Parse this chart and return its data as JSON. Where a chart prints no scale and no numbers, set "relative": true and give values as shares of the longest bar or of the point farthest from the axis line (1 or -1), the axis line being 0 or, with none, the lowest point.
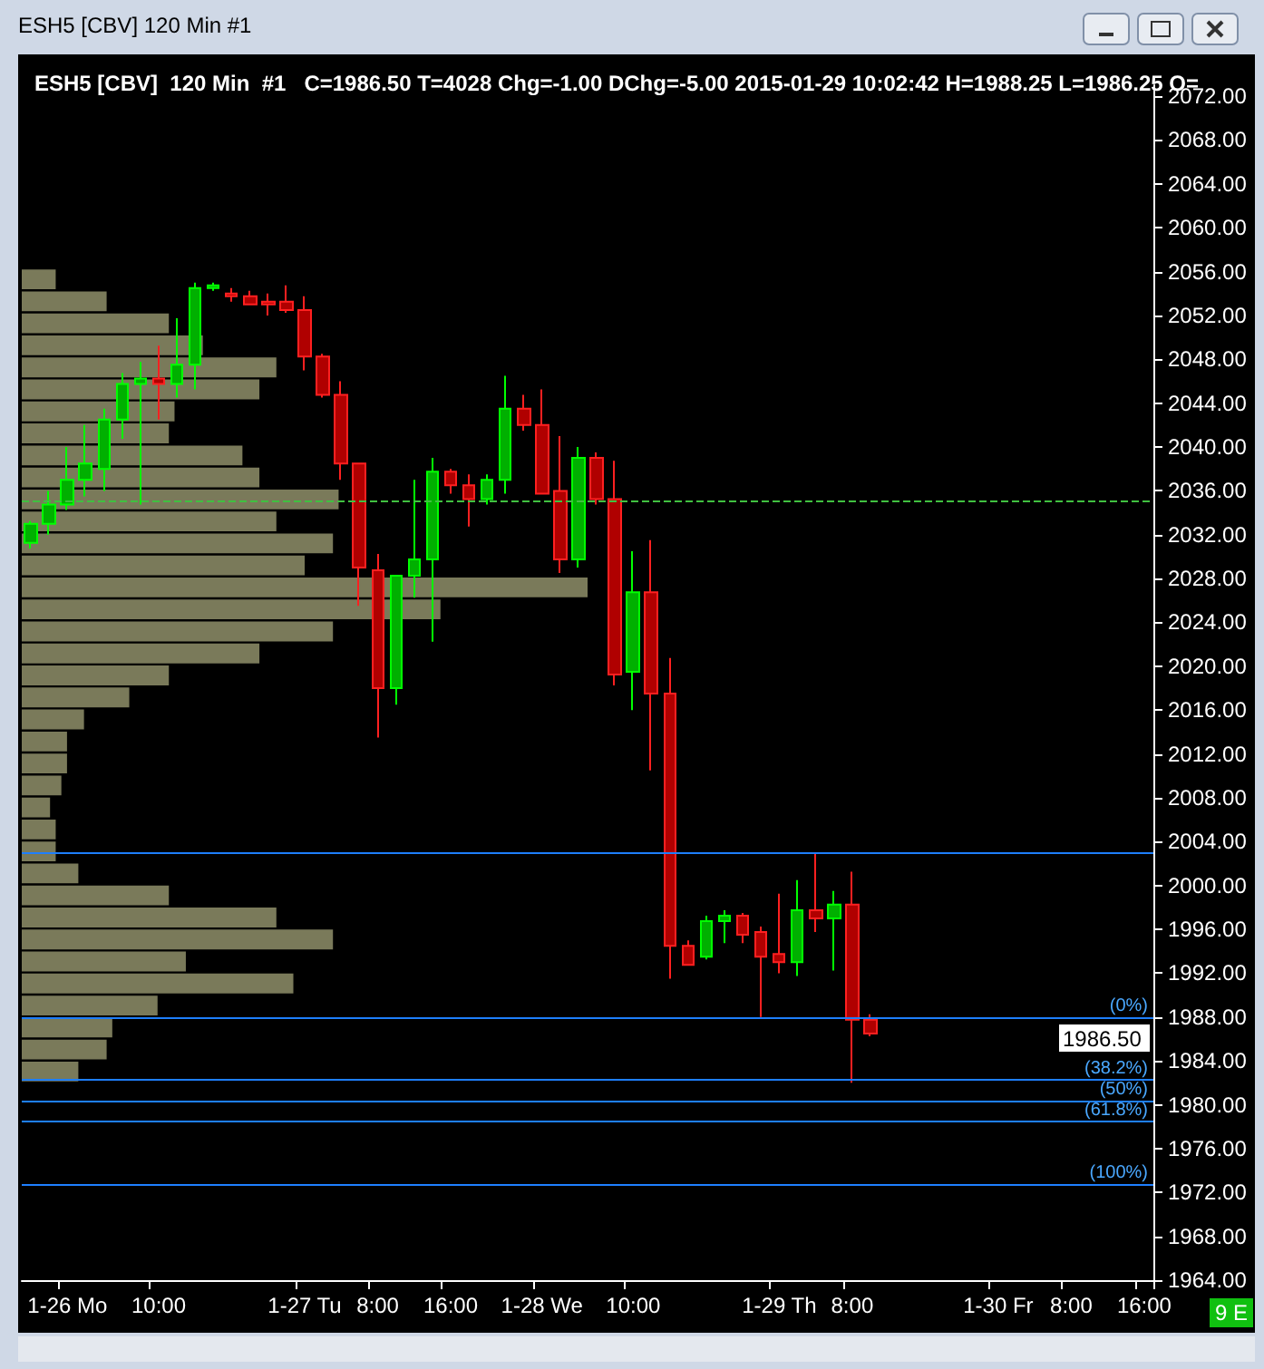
{
  "chart_data": [
    {
      "type": "candlestick",
      "title": "ESH5 [CBV]  120 Min  #1",
      "subtitle": "C=1986.50 T=4028 Chg=-1.00 DChg=-5.00 2015-01-29 10:02:42 H=1988.25 L=1986.25 O=",
      "categories": [
        null,
        null,
        "1-26 Mo",
        null,
        null,
        null,
        null,
        "10:00",
        null,
        null,
        null,
        null,
        null,
        null,
        null,
        "1-27 Tu",
        null,
        null,
        null,
        "8:00",
        null,
        null,
        null,
        "16:00",
        null,
        null,
        null,
        null,
        "1-28 We",
        null,
        null,
        null,
        null,
        "10:00",
        null,
        null,
        null,
        null,
        null,
        null,
        null,
        "1-29 Th",
        null,
        null,
        null,
        "8:00",
        null,
        null,
        null,
        null,
        null,
        null,
        null,
        "1-30 Fr",
        null,
        null,
        null,
        "8:00",
        null,
        null,
        null,
        "16:00"
      ],
      "ohlc": [
        [
          2031.25,
          2033.25,
          2030.75,
          2033
        ],
        [
          2033,
          2036,
          2032,
          2034.75
        ],
        [
          2034.75,
          2040,
          2034.25,
          2037
        ],
        [
          2037,
          2042,
          2035.5,
          2038.5
        ],
        [
          2038,
          2043.5,
          2036,
          2042.5
        ],
        [
          2042.5,
          2046.75,
          2040.75,
          2045.75
        ],
        [
          2045.75,
          2047.75,
          2034.75,
          2046.25
        ],
        [
          2046.25,
          2049.25,
          2042.5,
          2045.75
        ],
        [
          2045.75,
          2051.75,
          2044.5,
          2047.5
        ],
        [
          2047.5,
          2055,
          2045.25,
          2054.5
        ],
        [
          2054.5,
          2055,
          2054.25,
          2054.75
        ],
        [
          2054,
          2054.5,
          2053.25,
          2053.75
        ],
        [
          2053.75,
          2054.25,
          2053,
          2053
        ],
        [
          2053.25,
          2054,
          2052,
          2053
        ],
        [
          2053.25,
          2054.75,
          2052.25,
          2052.5
        ],
        [
          2052.5,
          2053.75,
          2047,
          2048.25
        ],
        [
          2048.25,
          2048.5,
          2044.5,
          2044.75
        ],
        [
          2044.75,
          2046,
          2037,
          2038.5
        ],
        [
          2038.5,
          2038.5,
          2025.5,
          2029
        ],
        [
          2028.75,
          2030.25,
          2013.5,
          2018
        ],
        [
          2018,
          2028.25,
          2016.5,
          2028.25
        ],
        [
          2028.25,
          2037,
          2026.25,
          2029.75
        ],
        [
          2029.75,
          2039,
          2022.25,
          2037.75
        ],
        [
          2037.75,
          2038,
          2035.75,
          2036.5
        ],
        [
          2036.5,
          2037.5,
          2032.75,
          2035.25
        ],
        [
          2035.25,
          2037.5,
          2034.75,
          2037
        ],
        [
          2037,
          2046.5,
          2035.75,
          2043.5
        ],
        [
          2043.5,
          2044.75,
          2041.5,
          2042
        ],
        [
          2042,
          2045.25,
          2035.75,
          2035.75
        ],
        [
          2036,
          2041,
          2028.5,
          2029.75
        ],
        [
          2029.75,
          2040,
          2029,
          2039
        ],
        [
          2039,
          2039.5,
          2034.75,
          2035.25
        ],
        [
          2035.25,
          2038.75,
          2018.25,
          2019.25
        ],
        [
          2019.5,
          2030.5,
          2016,
          2026.75
        ],
        [
          2026.75,
          2031.5,
          2010.5,
          2017.5
        ],
        [
          2017.5,
          2020.75,
          1991.5,
          1994.5
        ],
        [
          1994.5,
          1995,
          1992.75,
          1992.75
        ],
        [
          1993.5,
          1997.25,
          1993.25,
          1996.75
        ],
        [
          1996.75,
          1997.75,
          1994.75,
          1997.25
        ],
        [
          1997.25,
          1997.5,
          1994.75,
          1995.5
        ],
        [
          1995.75,
          1996.25,
          1988,
          1993.5
        ],
        [
          1993.75,
          1999.25,
          1992,
          1993
        ],
        [
          1993,
          2000.5,
          1991.75,
          1997.75
        ],
        [
          1997.75,
          2003,
          1995.75,
          1997
        ],
        [
          1997,
          1999.5,
          1992.25,
          1998.25
        ],
        [
          1998.25,
          2001.25,
          1982,
          1987.75
        ],
        [
          1987.75,
          1988.25,
          1986.25,
          1986.5
        ],
        null,
        null,
        null,
        null,
        null,
        null,
        null,
        null,
        null,
        null,
        null,
        null,
        null,
        null,
        null
      ],
      "ylim": [
        1964,
        2073
      ],
      "yticks": [
        {
          "value": 1964,
          "label": "1964.00"
        },
        {
          "value": 1968,
          "label": "1968.00"
        },
        {
          "value": 1972,
          "label": "1972.00"
        },
        {
          "value": 1976,
          "label": "1976.00"
        },
        {
          "value": 1980,
          "label": "1980.00"
        },
        {
          "value": 1984,
          "label": "1984.00"
        },
        {
          "value": 1988,
          "label": "1988.00"
        },
        {
          "value": 1992,
          "label": "1992.00"
        },
        {
          "value": 1996,
          "label": "1996.00"
        },
        {
          "value": 2000,
          "label": "2000.00"
        },
        {
          "value": 2004,
          "label": "2004.00"
        },
        {
          "value": 2008,
          "label": "2008.00"
        },
        {
          "value": 2012,
          "label": "2012.00"
        },
        {
          "value": 2016,
          "label": "2016.00"
        },
        {
          "value": 2020,
          "label": "2020.00"
        },
        {
          "value": 2024,
          "label": "2024.00"
        },
        {
          "value": 2028,
          "label": "2028.00"
        },
        {
          "value": 2032,
          "label": "2032.00"
        },
        {
          "value": 2036,
          "label": "2036.00"
        },
        {
          "value": 2040,
          "label": "2040.00"
        },
        {
          "value": 2044,
          "label": "2044.00"
        },
        {
          "value": 2048,
          "label": "2048.00"
        },
        {
          "value": 2052,
          "label": "2052.00"
        },
        {
          "value": 2056,
          "label": "2056.00"
        },
        {
          "value": 2060,
          "label": "2060.00"
        },
        {
          "value": 2064,
          "label": "2064.00"
        },
        {
          "value": 2068,
          "label": "2068.00"
        },
        {
          "value": 2072,
          "label": "2072.00"
        }
      ],
      "ref_lines": [
        {
          "axis": "y",
          "value": 2035,
          "color": "#40c040",
          "line_style": "dashed"
        },
        {
          "axis": "y",
          "value": 2003,
          "color": "#1e7fff"
        },
        {
          "axis": "y",
          "value": 1988,
          "color": "#1e7fff"
        },
        {
          "axis": "y",
          "value": 1982.25,
          "color": "#1e7fff"
        },
        {
          "axis": "y",
          "value": 1980.375,
          "color": "#1e7fff"
        },
        {
          "axis": "y",
          "value": 1978.5,
          "color": "#1e7fff"
        },
        {
          "axis": "y",
          "value": 1972.75,
          "color": "#1e7fff"
        }
      ],
      "annotations": [
        "1986.50",
        "9 E",
        {
          "text": "(0%)",
          "y": 1988
        },
        {
          "text": "(38.2%)",
          "y": 1982.25
        },
        {
          "text": "(50%)",
          "y": 1980.375
        },
        {
          "text": "(61.8%)",
          "y": 1978.5
        },
        {
          "text": "(100%)",
          "y": 1972.75
        }
      ]
    },
    {
      "type": "bar",
      "orientation": "horizontal",
      "relative": true,
      "color": "#7a7a5a",
      "categories": [
        null,
        null,
        null,
        null,
        null,
        null,
        null,
        null,
        null,
        null,
        null,
        null,
        null,
        null,
        null,
        null,
        null,
        null,
        null,
        null,
        null,
        null,
        null,
        null,
        null,
        null,
        null,
        null,
        null,
        null,
        null,
        null,
        null,
        null,
        null,
        null,
        null
      ],
      "values": [
        0.06,
        0.15,
        0.26,
        0.32,
        0.45,
        0.42,
        0.27,
        0.26,
        0.39,
        0.42,
        0.56,
        0.45,
        0.55,
        0.5,
        1,
        0.74,
        0.55,
        0.42,
        0.26,
        0.19,
        0.11,
        0.08,
        0.08,
        0.07,
        0.05,
        0.06,
        0.06,
        0.1,
        0.26,
        0.45,
        0.55,
        0.29,
        0.48,
        0.24,
        0.16,
        0.15,
        0.1
      ]
    }
  ]
}
